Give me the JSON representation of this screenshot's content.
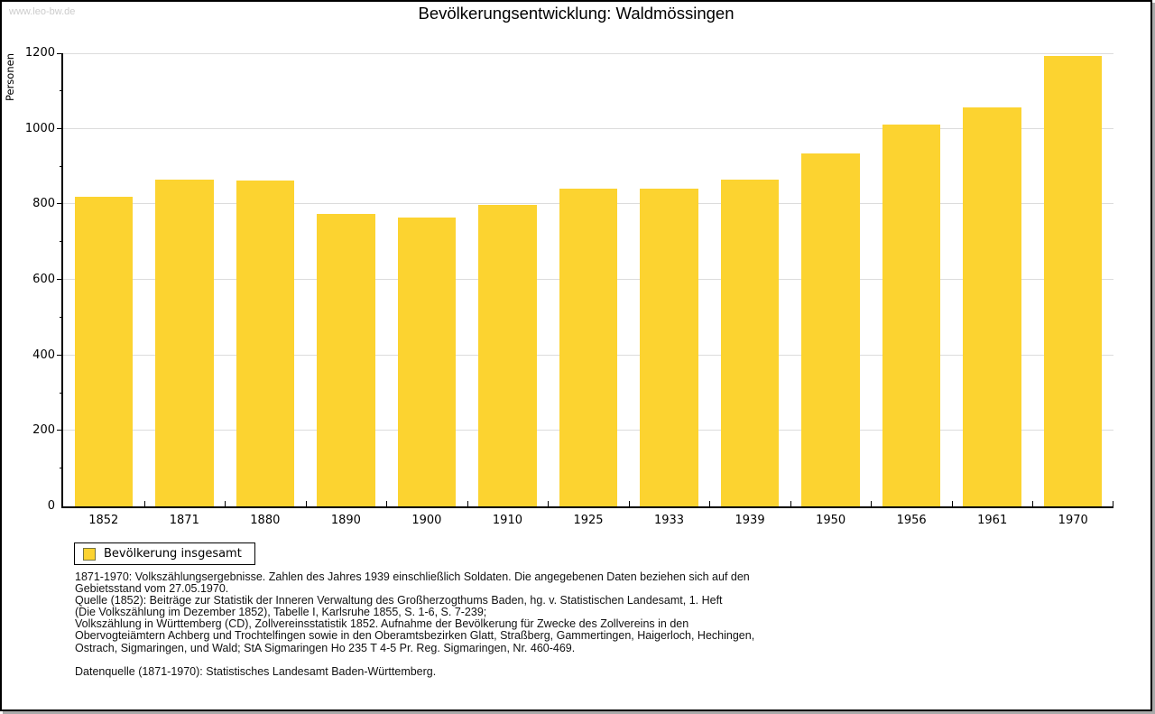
{
  "watermark": "www.leo-bw.de",
  "header": {
    "title": "Bevölkerungsentwicklung: Waldmössingen"
  },
  "colors": {
    "bar": "#FCD330",
    "grid": "#DCDCDC",
    "axis": "#000000",
    "watermark": "#CCCCCC",
    "legend_swatch_border": "#77743E",
    "frame_shadow": "#AAAAAA"
  },
  "chart_data": {
    "type": "bar",
    "title": "Bevölkerungsentwicklung: Waldmössingen",
    "xlabel": "",
    "ylabel": "Personen",
    "categories": [
      "1852",
      "1871",
      "1880",
      "1890",
      "1900",
      "1910",
      "1925",
      "1933",
      "1939",
      "1950",
      "1956",
      "1961",
      "1970"
    ],
    "values": [
      820,
      866,
      864,
      775,
      765,
      798,
      842,
      842,
      866,
      935,
      1010,
      1057,
      1194
    ],
    "series": [
      {
        "name": "Bevölkerung insgesamt",
        "values": [
          820,
          866,
          864,
          775,
          765,
          798,
          842,
          842,
          866,
          935,
          1010,
          1057,
          1194
        ]
      }
    ],
    "ylim": [
      0,
      1200
    ],
    "ytick_interval": 200,
    "ytick_minor_interval": 100,
    "ytick_labels": [
      "0",
      "200",
      "400",
      "600",
      "800",
      "1000",
      "1200"
    ],
    "grid": true,
    "legend_position": "bottom-left",
    "legend_entries": [
      "Bevölkerung insgesamt"
    ]
  },
  "legend": {
    "label": "Bevölkerung insgesamt"
  },
  "footnotes": {
    "lines": [
      "1871-1970: Volkszählungsergebnisse. Zahlen des Jahres 1939 einschließlich Soldaten. Die angegebenen Daten beziehen sich auf den",
      "Gebietsstand vom 27.05.1970.",
      "Quelle (1852): Beiträge zur Statistik der Inneren Verwaltung des Großherzogthums Baden, hg. v. Statistischen Landesamt, 1. Heft",
      "(Die Volkszählung im Dezember 1852), Tabelle I, Karlsruhe 1855, S. 1-6, S. 7-239;",
      "Volkszählung in Württemberg (CD), Zollvereinsstatistik 1852. Aufnahme der Bevölkerung für Zwecke des Zollvereins in den",
      "Obervogteiämtern Achberg und Trochtelfingen sowie in den Oberamtsbezirken Glatt, Straßberg, Gammertingen, Haigerloch, Hechingen,",
      "Ostrach, Sigmaringen, und Wald; StA Sigmaringen Ho 235 T 4-5 Pr. Reg. Sigmaringen, Nr. 460-469."
    ],
    "datasource": "Datenquelle (1871-1970): Statistisches Landesamt Baden-Württemberg."
  }
}
